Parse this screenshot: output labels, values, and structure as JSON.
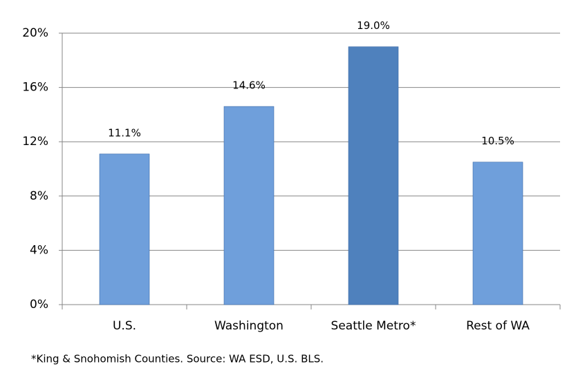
{
  "chart_data": {
    "type": "bar",
    "categories": [
      "U.S.",
      "Washington",
      "Seattle Metro*",
      "Rest of WA"
    ],
    "values": [
      11.1,
      14.6,
      19.0,
      10.5
    ],
    "value_labels": [
      "11.1%",
      "14.6%",
      "19.0%",
      "10.5%"
    ],
    "colors": [
      "#6f9fdb",
      "#6f9fdb",
      "#4f81bd",
      "#6f9fdb"
    ],
    "ylim": [
      0,
      20
    ],
    "yticks": [
      {
        "value": 0,
        "label": "0%"
      },
      {
        "value": 4,
        "label": "4%"
      },
      {
        "value": 8,
        "label": "8%"
      },
      {
        "value": 12,
        "label": "12%"
      },
      {
        "value": 16,
        "label": "16%"
      },
      {
        "value": 20,
        "label": "20%"
      }
    ],
    "grid": true,
    "note": "*King & Snohomish Counties.  Source: WA ESD, U.S. BLS."
  }
}
